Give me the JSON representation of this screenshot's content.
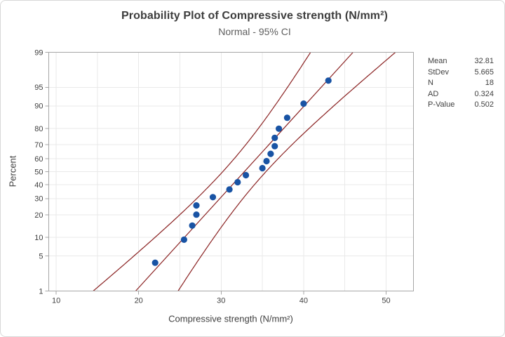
{
  "chart_data": {
    "type": "scatter",
    "subtype": "normal-probability-plot",
    "title": "Probability Plot of Compressive strength (N/mm²)",
    "subtitle": "Normal - 95% CI",
    "xlabel": "Compressive strength (N/mm²)",
    "ylabel": "Percent",
    "ci_level_percent": 95,
    "n": 18,
    "mean": 32.81,
    "stdev": 5.665,
    "points": {
      "x": [
        22,
        25.5,
        26.5,
        27,
        27,
        29,
        31,
        32,
        33,
        35,
        35.5,
        36,
        36.5,
        36.5,
        37,
        38,
        40,
        43
      ],
      "percent": [
        3.8,
        9.24,
        14.67,
        20.11,
        25.54,
        30.98,
        36.41,
        41.85,
        47.28,
        52.72,
        58.15,
        63.59,
        69.02,
        74.46,
        79.89,
        85.33,
        90.76,
        96.2
      ]
    },
    "x_ticks": [
      10,
      20,
      30,
      40,
      50
    ],
    "x_gridlines": [
      10,
      15,
      20,
      25,
      30,
      35,
      40,
      45,
      50
    ],
    "y_ticks": [
      1,
      5,
      10,
      20,
      30,
      40,
      50,
      60,
      70,
      80,
      90,
      95,
      99
    ],
    "x_axis_range": [
      9.1,
      53.3
    ],
    "y_axis_range_percent": [
      1,
      99
    ],
    "legend_position": "none",
    "grid": true,
    "colors": {
      "point": "#1853A4",
      "line": "#8B2323",
      "grid": "#E9E9E9",
      "frame": "#A6A6A6",
      "text": "#3F3F3F"
    }
  },
  "stats": {
    "rows": [
      {
        "label": "Mean",
        "value": "32.81"
      },
      {
        "label": "StDev",
        "value": "5.665"
      },
      {
        "label": "N",
        "value": "18"
      },
      {
        "label": "AD",
        "value": "0.324"
      },
      {
        "label": "P-Value",
        "value": "0.502"
      }
    ]
  }
}
